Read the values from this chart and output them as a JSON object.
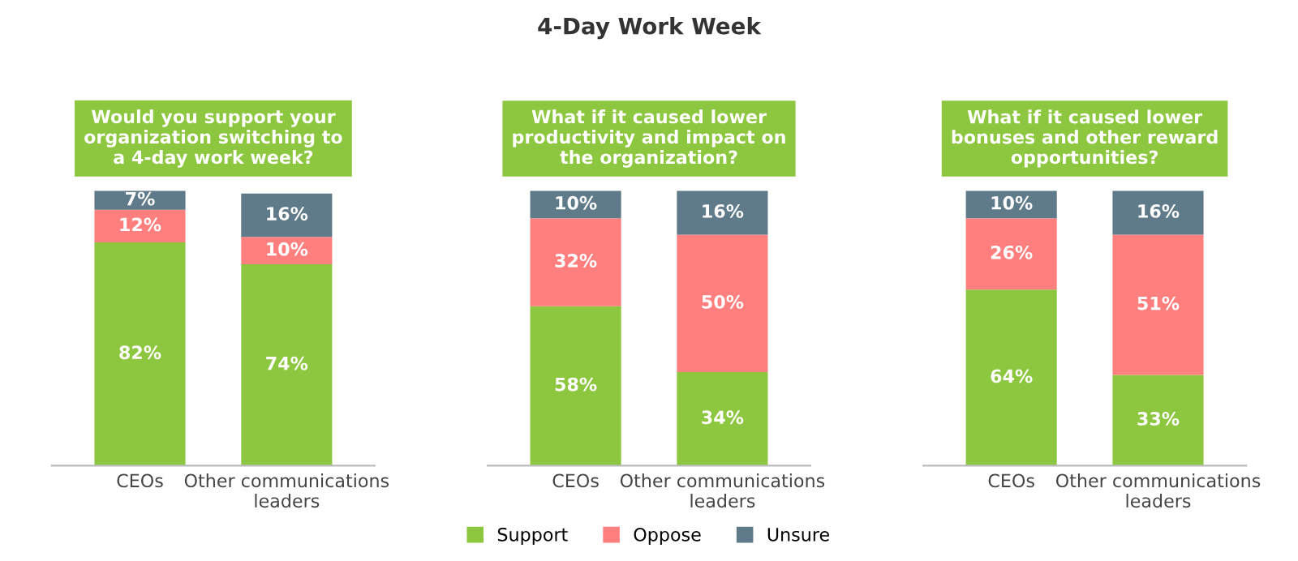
{
  "chart_data": [
    {
      "type": "bar",
      "stacked": true,
      "title": "Would you support your organization switching to a 4-day work week?",
      "annotations": [
        "4-Day Work Week"
      ],
      "categories": [
        "CEOs",
        "Other communications leaders"
      ],
      "grid": false,
      "legend": "bottom",
      "tick_labels": "x",
      "series": [
        {
          "name": "Support",
          "color": "#8dc63f",
          "values": [
            82,
            74
          ],
          "value_labels": [
            "82%",
            "74%"
          ]
        },
        {
          "name": "Oppose",
          "color": "#ff7f7f",
          "values": [
            12,
            10
          ],
          "value_labels": [
            "12%",
            "10%"
          ]
        },
        {
          "name": "Unsure",
          "color": "#5f7a89",
          "values": [
            7,
            16
          ],
          "value_labels": [
            "7%",
            "16%"
          ]
        }
      ]
    },
    {
      "type": "bar",
      "stacked": true,
      "title": "What if it caused lower productivity and impact on the organization?",
      "categories": [
        "CEOs",
        "Other communications leaders"
      ],
      "grid": false,
      "legend": "bottom",
      "tick_labels": "x",
      "series": [
        {
          "name": "Support",
          "color": "#8dc63f",
          "values": [
            58,
            34
          ],
          "value_labels": [
            "58%",
            "34%"
          ]
        },
        {
          "name": "Oppose",
          "color": "#ff7f7f",
          "values": [
            32,
            50
          ],
          "value_labels": [
            "32%",
            "50%"
          ]
        },
        {
          "name": "Unsure",
          "color": "#5f7a89",
          "values": [
            10,
            16
          ],
          "value_labels": [
            "10%",
            "16%"
          ]
        }
      ]
    },
    {
      "type": "bar",
      "stacked": true,
      "title": "What if it caused lower bonuses and other reward opportunities?",
      "categories": [
        "CEOs",
        "Other communications leaders"
      ],
      "grid": false,
      "legend": "bottom",
      "tick_labels": "x",
      "series": [
        {
          "name": "Support",
          "color": "#8dc63f",
          "values": [
            64,
            33
          ],
          "value_labels": [
            "64%",
            "33%"
          ]
        },
        {
          "name": "Oppose",
          "color": "#ff7f7f",
          "values": [
            26,
            51
          ],
          "value_labels": [
            "26%",
            "51%"
          ]
        },
        {
          "name": "Unsure",
          "color": "#5f7a89",
          "values": [
            10,
            16
          ],
          "value_labels": [
            "10%",
            "16%"
          ]
        }
      ]
    }
  ]
}
